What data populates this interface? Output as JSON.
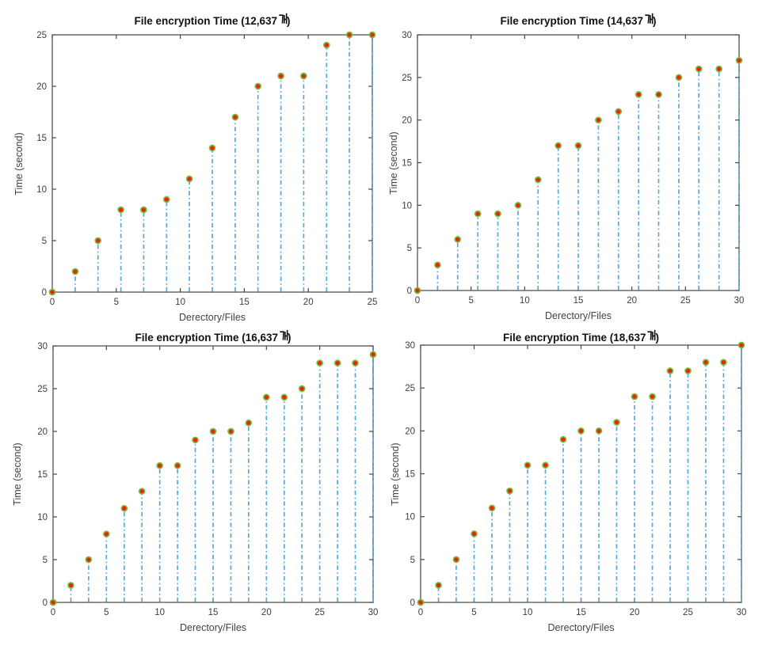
{
  "figure": {
    "background": "#ffffff",
    "description": "2x2 grid of MATLAB-style stem plots of file encryption time"
  },
  "style": {
    "stem_color": "#58a7db",
    "stem_dash": "5.5 3.2 1.6 3.2",
    "marker_fill": "#e8250d",
    "marker_edge": "#77c043",
    "axis_color": "#454545",
    "tick_label_color": "#3d3d3d",
    "axis_label_color": "#424242",
    "title_color": "#111111"
  },
  "chart_data": [
    {
      "type": "stem",
      "title": "File encryption Time (12,637개)",
      "title_pre": "File encryption Time (12,637",
      "title_unit": "개",
      "title_post": ")",
      "xlabel": "Derectory/Files",
      "ylabel": "Time (second)",
      "xlim": [
        0,
        25
      ],
      "ylim": [
        0,
        25
      ],
      "xticks": [
        0,
        5,
        10,
        15,
        20,
        25
      ],
      "yticks": [
        0,
        5,
        10,
        15,
        20,
        25
      ],
      "grid": false,
      "legend": null,
      "x": [
        0,
        1.79,
        3.57,
        5.36,
        7.14,
        8.93,
        10.71,
        12.5,
        14.29,
        16.07,
        17.86,
        19.64,
        21.43,
        23.21,
        25
      ],
      "y": [
        0,
        2,
        5,
        8,
        8,
        9,
        11,
        14,
        17,
        20,
        21,
        21,
        24,
        25,
        25
      ]
    },
    {
      "type": "stem",
      "title": "File encryption Time (14,637개)",
      "title_pre": "File encryption Time (14,637",
      "title_unit": "개",
      "title_post": ")",
      "xlabel": "Derectory/Files",
      "ylabel": "Time (second)",
      "xlim": [
        0,
        30
      ],
      "ylim": [
        0,
        30
      ],
      "xticks": [
        0,
        5,
        10,
        15,
        20,
        25,
        30
      ],
      "yticks": [
        0,
        5,
        10,
        15,
        20,
        25,
        30
      ],
      "grid": false,
      "legend": null,
      "x": [
        0,
        1.88,
        3.75,
        5.63,
        7.5,
        9.38,
        11.25,
        13.13,
        15,
        16.88,
        18.75,
        20.63,
        22.5,
        24.38,
        26.25,
        28.13,
        30
      ],
      "y": [
        0,
        3,
        6,
        9,
        9,
        10,
        13,
        17,
        17,
        20,
        21,
        23,
        23,
        25,
        26,
        26,
        27
      ]
    },
    {
      "type": "stem",
      "title": "File encryption Time (16,637개)",
      "title_pre": "File encryption Time (16,637",
      "title_unit": "개",
      "title_post": ")",
      "xlabel": "Derectory/Files",
      "ylabel": "Time (second)",
      "xlim": [
        0,
        30
      ],
      "ylim": [
        0,
        30
      ],
      "xticks": [
        0,
        5,
        10,
        15,
        20,
        25,
        30
      ],
      "yticks": [
        0,
        5,
        10,
        15,
        20,
        25,
        30
      ],
      "grid": false,
      "legend": null,
      "x": [
        0,
        1.67,
        3.33,
        5,
        6.67,
        8.33,
        10,
        11.67,
        13.33,
        15,
        16.67,
        18.33,
        20,
        21.67,
        23.33,
        25,
        26.67,
        28.33,
        30
      ],
      "y": [
        0,
        2,
        5,
        8,
        11,
        13,
        16,
        16,
        19,
        20,
        20,
        21,
        24,
        24,
        25,
        28,
        28,
        28,
        29
      ]
    },
    {
      "type": "stem",
      "title": "File encryption Time (18,637개)",
      "title_pre": "File encryption Time (18,637",
      "title_unit": "개",
      "title_post": ")",
      "xlabel": "Derectory/Files",
      "ylabel": "Time (second)",
      "xlim": [
        0,
        30
      ],
      "ylim": [
        0,
        30
      ],
      "xticks": [
        0,
        5,
        10,
        15,
        20,
        25,
        30
      ],
      "yticks": [
        0,
        5,
        10,
        15,
        20,
        25,
        30
      ],
      "grid": false,
      "legend": null,
      "x": [
        0,
        1.67,
        3.33,
        5,
        6.67,
        8.33,
        10,
        11.67,
        13.33,
        15,
        16.67,
        18.33,
        20,
        21.67,
        23.33,
        25,
        26.67,
        28.33,
        30
      ],
      "y": [
        0,
        2,
        5,
        8,
        11,
        13,
        16,
        16,
        19,
        20,
        20,
        21,
        24,
        24,
        27,
        27,
        28,
        28,
        30
      ]
    }
  ]
}
